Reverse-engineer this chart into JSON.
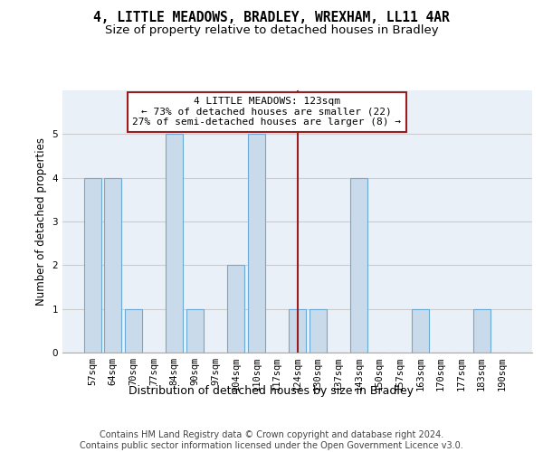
{
  "title1": "4, LITTLE MEADOWS, BRADLEY, WREXHAM, LL11 4AR",
  "title2": "Size of property relative to detached houses in Bradley",
  "xlabel": "Distribution of detached houses by size in Bradley",
  "ylabel": "Number of detached properties",
  "categories": [
    "57sqm",
    "64sqm",
    "70sqm",
    "77sqm",
    "84sqm",
    "90sqm",
    "97sqm",
    "104sqm",
    "110sqm",
    "117sqm",
    "124sqm",
    "130sqm",
    "137sqm",
    "143sqm",
    "150sqm",
    "157sqm",
    "163sqm",
    "170sqm",
    "177sqm",
    "183sqm",
    "190sqm"
  ],
  "values": [
    4,
    4,
    1,
    0,
    5,
    1,
    0,
    2,
    5,
    0,
    1,
    1,
    0,
    4,
    0,
    0,
    1,
    0,
    0,
    1,
    0
  ],
  "bar_color": "#c9daea",
  "bar_edge_color": "#6aaad4",
  "reference_line_x": 10,
  "reference_line_color": "#9b1c1c",
  "annotation_text": "4 LITTLE MEADOWS: 123sqm\n← 73% of detached houses are smaller (22)\n27% of semi-detached houses are larger (8) →",
  "annotation_box_color": "#ffffff",
  "annotation_box_edge_color": "#9b1c1c",
  "ylim": [
    0,
    6
  ],
  "yticks": [
    0,
    1,
    2,
    3,
    4,
    5,
    6
  ],
  "grid_color": "#cccccc",
  "background_color": "#eaf0f7",
  "footer_text": "Contains HM Land Registry data © Crown copyright and database right 2024.\nContains public sector information licensed under the Open Government Licence v3.0.",
  "title_fontsize": 10.5,
  "subtitle_fontsize": 9.5,
  "ylabel_fontsize": 8.5,
  "xlabel_fontsize": 9,
  "tick_fontsize": 7.5,
  "annotation_fontsize": 8,
  "footer_fontsize": 7
}
